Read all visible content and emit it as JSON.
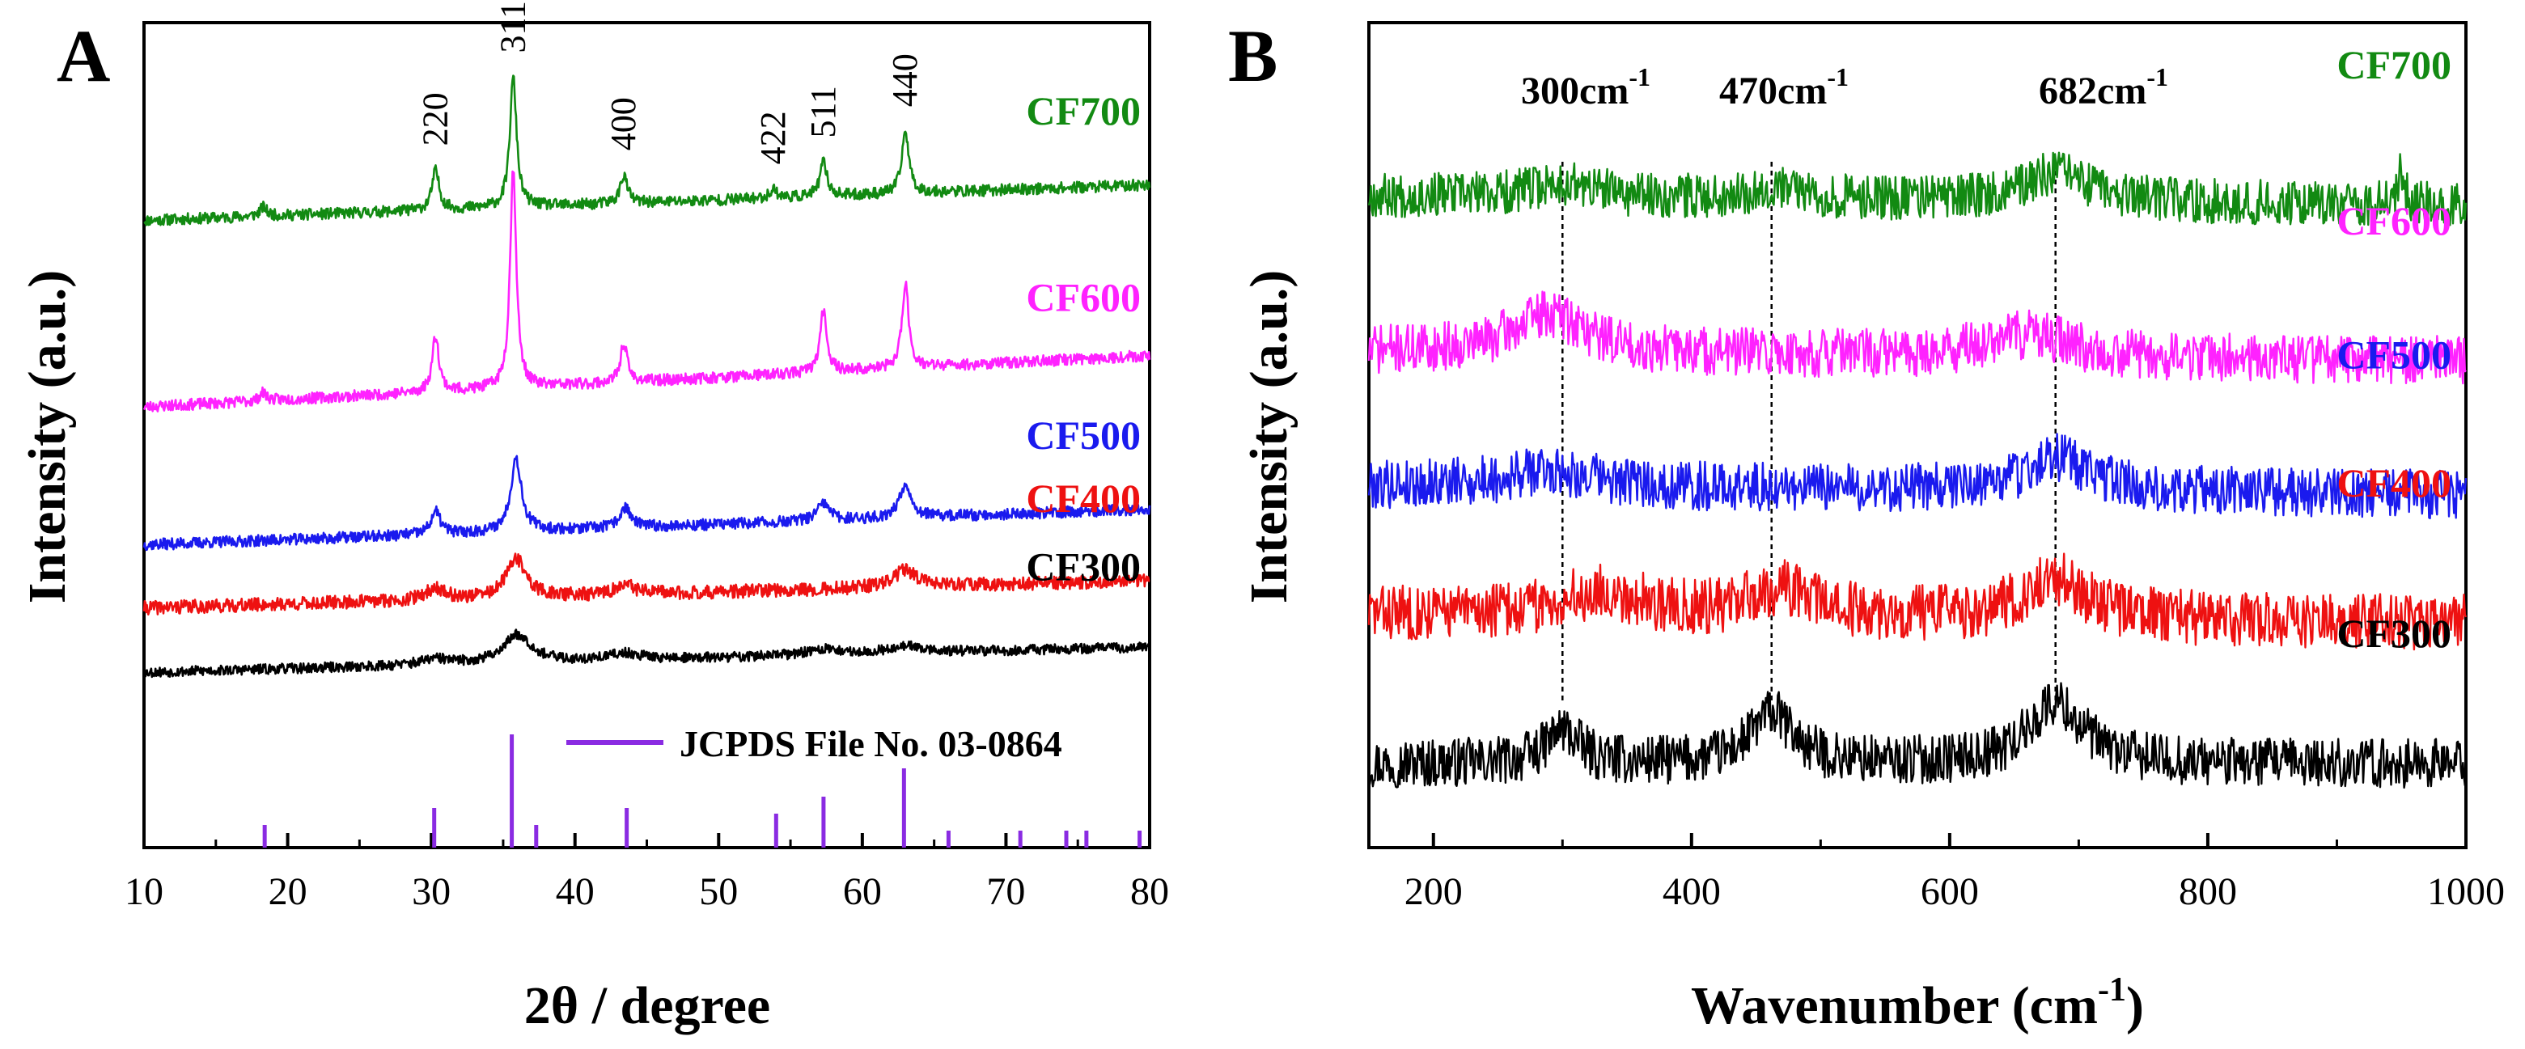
{
  "chart_data": [
    {
      "panel_label": "A",
      "type": "line",
      "xlabel": "2θ / degree",
      "ylabel": "Intensity (a.u.)",
      "xlim": [
        10,
        80
      ],
      "xticks": [
        10,
        20,
        30,
        40,
        50,
        60,
        70,
        80
      ],
      "series": [
        {
          "name": "CF700",
          "color": "#128a12",
          "baseline": 5.55,
          "slope": 0.0045,
          "noise": 0.05,
          "seed": 11,
          "peaks": [
            [
              18.3,
              0.08,
              0.3
            ],
            [
              30.3,
              0.35,
              0.3
            ],
            [
              35.7,
              1.15,
              0.28
            ],
            [
              43.4,
              0.25,
              0.3
            ],
            [
              53.8,
              0.08,
              0.3
            ],
            [
              57.3,
              0.3,
              0.3
            ],
            [
              63.0,
              0.55,
              0.3
            ]
          ]
        },
        {
          "name": "CF600",
          "color": "#ff22ff",
          "baseline": 3.9,
          "slope": 0.0065,
          "noise": 0.05,
          "seed": 23,
          "peaks": [
            [
              18.3,
              0.07,
              0.3
            ],
            [
              30.3,
              0.5,
              0.28
            ],
            [
              35.7,
              1.95,
              0.26
            ],
            [
              43.4,
              0.35,
              0.28
            ],
            [
              57.3,
              0.55,
              0.28
            ],
            [
              63.0,
              0.75,
              0.28
            ]
          ]
        },
        {
          "name": "CF500",
          "color": "#1a1aee",
          "baseline": 2.68,
          "slope": 0.0045,
          "noise": 0.05,
          "seed": 37,
          "peaks": [
            [
              30.3,
              0.2,
              0.4
            ],
            [
              35.9,
              0.65,
              0.45
            ],
            [
              43.5,
              0.18,
              0.45
            ],
            [
              57.3,
              0.15,
              0.5
            ],
            [
              63.0,
              0.3,
              0.5
            ]
          ]
        },
        {
          "name": "CF400",
          "color": "#ee1111",
          "baseline": 2.12,
          "slope": 0.0035,
          "noise": 0.06,
          "seed": 41,
          "peaks": [
            [
              30.3,
              0.1,
              0.8
            ],
            [
              35.9,
              0.35,
              0.8
            ],
            [
              43.5,
              0.08,
              0.9
            ],
            [
              63.0,
              0.15,
              1.0
            ]
          ]
        },
        {
          "name": "CF300",
          "color": "#000000",
          "baseline": 1.55,
          "slope": 0.0032,
          "noise": 0.045,
          "seed": 53,
          "peaks": [
            [
              30.3,
              0.05,
              1.2
            ],
            [
              36.0,
              0.25,
              1.2
            ],
            [
              43.5,
              0.06,
              1.4
            ],
            [
              57.3,
              0.05,
              1.5
            ],
            [
              63.0,
              0.06,
              1.6
            ]
          ]
        }
      ],
      "reference": {
        "legend": "JCPDS File No. 03-0864",
        "color": "#8a2be2",
        "positions": [
          18.4,
          30.2,
          35.6,
          37.3,
          43.6,
          54.0,
          57.3,
          62.9,
          66.0,
          71.0,
          74.2,
          75.6,
          79.3
        ],
        "intensities": [
          0.2,
          0.35,
          1.0,
          0.2,
          0.35,
          0.3,
          0.45,
          0.7,
          0.15,
          0.15,
          0.15,
          0.15,
          0.15
        ]
      },
      "peak_labels": [
        {
          "text": "220",
          "x": 30.3
        },
        {
          "text": "311",
          "x": 35.7
        },
        {
          "text": "400",
          "x": 43.4
        },
        {
          "text": "422",
          "x": 53.8
        },
        {
          "text": "511",
          "x": 57.3
        },
        {
          "text": "440",
          "x": 63.0
        }
      ]
    },
    {
      "panel_label": "B",
      "type": "line",
      "xlabel": "Wavenumber (cm",
      "xlabel_sup": "-1",
      "xlabel_tail": ")",
      "ylabel": "Intensity (a.u.)",
      "xlim": [
        150,
        1000
      ],
      "xticks": [
        200,
        400,
        600,
        800,
        1000
      ],
      "series": [
        {
          "name": "CF700",
          "color": "#128a12",
          "baseline": 5.35,
          "slope": -0.0001,
          "noise": 0.2,
          "seed": 67,
          "peaks": [
            [
              300,
              0.12,
              30
            ],
            [
              465,
              0.1,
              25
            ],
            [
              682,
              0.25,
              30
            ],
            [
              950,
              0.3,
              3
            ]
          ]
        },
        {
          "name": "CF600",
          "color": "#ff22ff",
          "baseline": 3.95,
          "slope": -0.0001,
          "noise": 0.22,
          "seed": 71,
          "peaks": [
            [
              290,
              0.35,
              35
            ],
            [
              660,
              0.2,
              40
            ]
          ]
        },
        {
          "name": "CF500",
          "color": "#1a1aee",
          "baseline": 2.75,
          "slope": -0.0001,
          "noise": 0.22,
          "seed": 79,
          "peaks": [
            [
              290,
              0.15,
              40
            ],
            [
              682,
              0.3,
              30
            ]
          ]
        },
        {
          "name": "CF400",
          "color": "#ee1111",
          "baseline": 1.6,
          "slope": -0.0001,
          "noise": 0.25,
          "seed": 83,
          "peaks": [
            [
              330,
              0.2,
              40
            ],
            [
              470,
              0.25,
              30
            ],
            [
              682,
              0.35,
              30
            ]
          ]
        },
        {
          "name": "CF300",
          "color": "#000000",
          "baseline": 0.25,
          "slope": 0.0,
          "noise": 0.22,
          "seed": 97,
          "peaks": [
            [
              300,
              0.3,
              15
            ],
            [
              462,
              0.45,
              20
            ],
            [
              682,
              0.55,
              25
            ]
          ]
        }
      ],
      "peak_markers": [
        {
          "base": "300cm",
          "sup": "-1",
          "x": 300
        },
        {
          "base": "470cm",
          "sup": "-1",
          "x": 462
        },
        {
          "base": "682cm",
          "sup": "-1",
          "x": 682
        }
      ]
    }
  ]
}
